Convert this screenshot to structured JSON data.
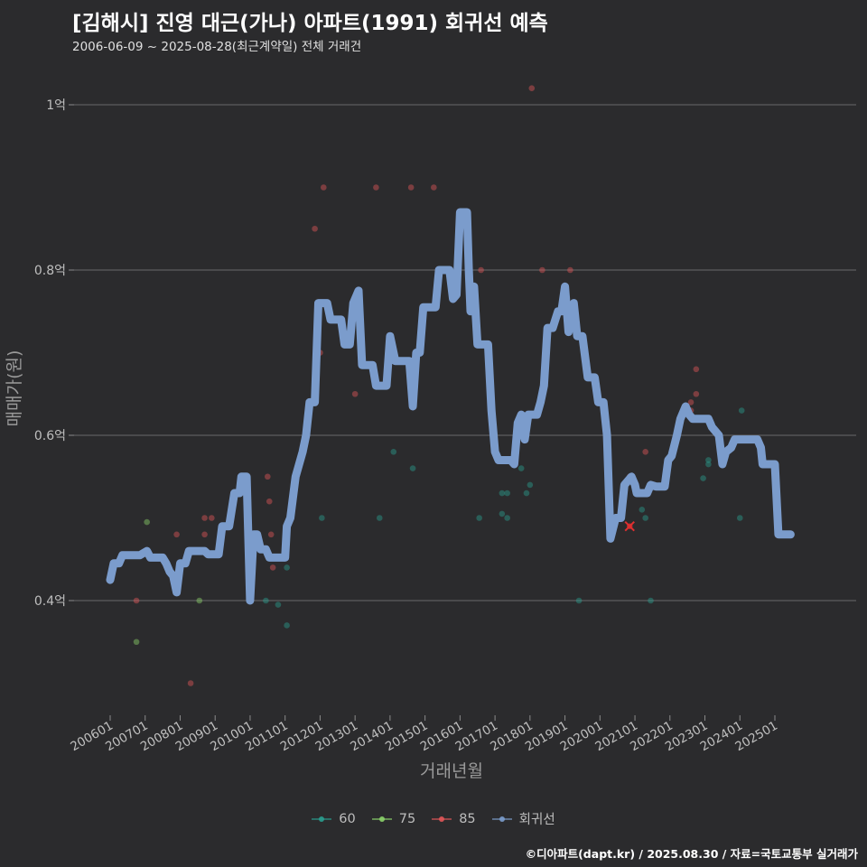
{
  "title": "[김해시] 진영 대근(가나) 아파트(1991) 회귀선 예측",
  "subtitle": "2006-06-09 ~ 2025-08-28(최근계약일) 전체 거래건",
  "caption": "©디아파트(dapt.kr) / 2025.08.30 / 자료=국토교통부 실거래가",
  "chart_data": {
    "type": "scatter",
    "xlabel": "거래년월",
    "ylabel": "매매가(원)",
    "ylim": [
      0.27,
      1.05
    ],
    "xlim": [
      2005.9,
      2025.95
    ],
    "y_ticks": [
      {
        "value": 0.4,
        "label": "0.4억"
      },
      {
        "value": 0.6,
        "label": "0.6억"
      },
      {
        "value": 0.8,
        "label": "0.8억"
      },
      {
        "value": 1.0,
        "label": "1억"
      }
    ],
    "x_ticks": [
      {
        "value": 2006.0,
        "label": "200601"
      },
      {
        "value": 2007.0,
        "label": "200701"
      },
      {
        "value": 2008.0,
        "label": "200801"
      },
      {
        "value": 2009.0,
        "label": "200901"
      },
      {
        "value": 2010.0,
        "label": "201001"
      },
      {
        "value": 2011.0,
        "label": "201101"
      },
      {
        "value": 2012.0,
        "label": "201201"
      },
      {
        "value": 2013.0,
        "label": "201301"
      },
      {
        "value": 2014.0,
        "label": "201401"
      },
      {
        "value": 2015.0,
        "label": "201501"
      },
      {
        "value": 2016.0,
        "label": "201601"
      },
      {
        "value": 2017.0,
        "label": "201701"
      },
      {
        "value": 2018.0,
        "label": "201801"
      },
      {
        "value": 2019.0,
        "label": "201901"
      },
      {
        "value": 2020.0,
        "label": "202001"
      },
      {
        "value": 2021.0,
        "label": "202101"
      },
      {
        "value": 2022.0,
        "label": "202201"
      },
      {
        "value": 2023.0,
        "label": "202301"
      },
      {
        "value": 2024.0,
        "label": "202401"
      },
      {
        "value": 2025.0,
        "label": "202501"
      }
    ],
    "legend": [
      {
        "name": "60",
        "color": "#2a9d8f",
        "kind": "point"
      },
      {
        "name": "75",
        "color": "#8bd26a",
        "kind": "point"
      },
      {
        "name": "85",
        "color": "#e15759",
        "kind": "point"
      },
      {
        "name": "회귀선",
        "color": "#7b9ccc",
        "kind": "line"
      }
    ],
    "series": [
      {
        "name": "60",
        "color": "#2a9d8f",
        "points": [
          [
            2010.45,
            0.4
          ],
          [
            2010.8,
            0.395
          ],
          [
            2011.05,
            0.44
          ],
          [
            2011.05,
            0.37
          ],
          [
            2012.05,
            0.5
          ],
          [
            2013.7,
            0.5
          ],
          [
            2014.1,
            0.58
          ],
          [
            2014.65,
            0.56
          ],
          [
            2016.55,
            0.5
          ],
          [
            2017.2,
            0.53
          ],
          [
            2017.2,
            0.505
          ],
          [
            2017.35,
            0.53
          ],
          [
            2017.35,
            0.5
          ],
          [
            2017.75,
            0.56
          ],
          [
            2017.9,
            0.53
          ],
          [
            2018.0,
            0.54
          ],
          [
            2019.4,
            0.4
          ],
          [
            2021.2,
            0.51
          ],
          [
            2021.3,
            0.5
          ],
          [
            2021.45,
            0.4
          ],
          [
            2022.95,
            0.548
          ],
          [
            2023.1,
            0.57
          ],
          [
            2023.1,
            0.565
          ],
          [
            2024.0,
            0.5
          ],
          [
            2024.05,
            0.63
          ]
        ]
      },
      {
        "name": "75",
        "color": "#8bd26a",
        "points": [
          [
            2006.75,
            0.35
          ],
          [
            2007.05,
            0.495
          ],
          [
            2008.55,
            0.4
          ]
        ]
      },
      {
        "name": "85",
        "color": "#e15759",
        "points": [
          [
            2006.75,
            0.4
          ],
          [
            2007.9,
            0.48
          ],
          [
            2008.3,
            0.3
          ],
          [
            2008.7,
            0.5
          ],
          [
            2008.7,
            0.48
          ],
          [
            2008.9,
            0.5
          ],
          [
            2010.5,
            0.55
          ],
          [
            2010.55,
            0.52
          ],
          [
            2010.6,
            0.48
          ],
          [
            2010.65,
            0.44
          ],
          [
            2011.85,
            0.85
          ],
          [
            2012.0,
            0.7
          ],
          [
            2012.1,
            0.9
          ],
          [
            2013.0,
            0.65
          ],
          [
            2013.6,
            0.9
          ],
          [
            2014.6,
            0.9
          ],
          [
            2015.25,
            0.9
          ],
          [
            2016.6,
            0.8
          ],
          [
            2018.05,
            1.02
          ],
          [
            2018.35,
            0.8
          ],
          [
            2019.15,
            0.8
          ],
          [
            2021.3,
            0.58
          ],
          [
            2022.6,
            0.64
          ],
          [
            2022.6,
            0.63
          ],
          [
            2022.75,
            0.68
          ],
          [
            2022.75,
            0.65
          ],
          [
            2020.85,
            0.55
          ]
        ]
      }
    ],
    "highlight_point": {
      "x": 2020.85,
      "y": 0.49,
      "color": "#e03030"
    },
    "regression": {
      "name": "회귀선",
      "color": "#7b9ccc",
      "points": [
        [
          2006.0,
          0.425
        ],
        [
          2006.1,
          0.445
        ],
        [
          2006.25,
          0.445
        ],
        [
          2006.35,
          0.455
        ],
        [
          2006.85,
          0.455
        ],
        [
          2007.05,
          0.46
        ],
        [
          2007.15,
          0.452
        ],
        [
          2007.5,
          0.452
        ],
        [
          2007.6,
          0.445
        ],
        [
          2007.7,
          0.435
        ],
        [
          2007.8,
          0.43
        ],
        [
          2007.9,
          0.41
        ],
        [
          2008.0,
          0.445
        ],
        [
          2008.15,
          0.445
        ],
        [
          2008.25,
          0.46
        ],
        [
          2008.7,
          0.46
        ],
        [
          2008.8,
          0.456
        ],
        [
          2009.1,
          0.456
        ],
        [
          2009.2,
          0.49
        ],
        [
          2009.4,
          0.49
        ],
        [
          2009.55,
          0.53
        ],
        [
          2009.7,
          0.53
        ],
        [
          2009.75,
          0.55
        ],
        [
          2009.9,
          0.55
        ],
        [
          2010.0,
          0.4
        ],
        [
          2010.1,
          0.48
        ],
        [
          2010.2,
          0.48
        ],
        [
          2010.3,
          0.462
        ],
        [
          2010.45,
          0.462
        ],
        [
          2010.55,
          0.452
        ],
        [
          2011.0,
          0.452
        ],
        [
          2011.05,
          0.49
        ],
        [
          2011.15,
          0.5
        ],
        [
          2011.3,
          0.55
        ],
        [
          2011.5,
          0.58
        ],
        [
          2011.6,
          0.6
        ],
        [
          2011.7,
          0.64
        ],
        [
          2011.85,
          0.64
        ],
        [
          2011.95,
          0.76
        ],
        [
          2012.2,
          0.76
        ],
        [
          2012.3,
          0.74
        ],
        [
          2012.6,
          0.74
        ],
        [
          2012.7,
          0.71
        ],
        [
          2012.85,
          0.71
        ],
        [
          2012.95,
          0.76
        ],
        [
          2013.1,
          0.775
        ],
        [
          2013.2,
          0.685
        ],
        [
          2013.5,
          0.685
        ],
        [
          2013.6,
          0.66
        ],
        [
          2013.9,
          0.66
        ],
        [
          2014.0,
          0.72
        ],
        [
          2014.15,
          0.69
        ],
        [
          2014.55,
          0.69
        ],
        [
          2014.65,
          0.635
        ],
        [
          2014.75,
          0.7
        ],
        [
          2014.85,
          0.7
        ],
        [
          2014.95,
          0.755
        ],
        [
          2015.3,
          0.755
        ],
        [
          2015.4,
          0.8
        ],
        [
          2015.7,
          0.8
        ],
        [
          2015.8,
          0.765
        ],
        [
          2015.9,
          0.77
        ],
        [
          2016.0,
          0.87
        ],
        [
          2016.2,
          0.87
        ],
        [
          2016.25,
          0.8
        ],
        [
          2016.3,
          0.75
        ],
        [
          2016.4,
          0.78
        ],
        [
          2016.5,
          0.71
        ],
        [
          2016.8,
          0.71
        ],
        [
          2016.9,
          0.63
        ],
        [
          2017.0,
          0.58
        ],
        [
          2017.1,
          0.57
        ],
        [
          2017.45,
          0.57
        ],
        [
          2017.55,
          0.565
        ],
        [
          2017.65,
          0.615
        ],
        [
          2017.75,
          0.625
        ],
        [
          2017.85,
          0.595
        ],
        [
          2017.95,
          0.625
        ],
        [
          2018.2,
          0.625
        ],
        [
          2018.3,
          0.64
        ],
        [
          2018.4,
          0.66
        ],
        [
          2018.5,
          0.73
        ],
        [
          2018.65,
          0.73
        ],
        [
          2018.8,
          0.75
        ],
        [
          2018.9,
          0.75
        ],
        [
          2019.0,
          0.78
        ],
        [
          2019.1,
          0.725
        ],
        [
          2019.25,
          0.76
        ],
        [
          2019.35,
          0.72
        ],
        [
          2019.5,
          0.72
        ],
        [
          2019.65,
          0.67
        ],
        [
          2019.85,
          0.67
        ],
        [
          2019.95,
          0.64
        ],
        [
          2020.1,
          0.64
        ],
        [
          2020.2,
          0.6
        ],
        [
          2020.3,
          0.475
        ],
        [
          2020.45,
          0.5
        ],
        [
          2020.6,
          0.5
        ],
        [
          2020.7,
          0.54
        ],
        [
          2020.9,
          0.55
        ],
        [
          2021.0,
          0.54
        ],
        [
          2021.05,
          0.53
        ],
        [
          2021.35,
          0.53
        ],
        [
          2021.45,
          0.54
        ],
        [
          2021.6,
          0.538
        ],
        [
          2021.85,
          0.538
        ],
        [
          2021.95,
          0.57
        ],
        [
          2022.05,
          0.575
        ],
        [
          2022.2,
          0.6
        ],
        [
          2022.3,
          0.62
        ],
        [
          2022.45,
          0.635
        ],
        [
          2022.55,
          0.625
        ],
        [
          2022.65,
          0.62
        ],
        [
          2022.8,
          0.62
        ],
        [
          2023.1,
          0.62
        ],
        [
          2023.2,
          0.61
        ],
        [
          2023.4,
          0.6
        ],
        [
          2023.5,
          0.565
        ],
        [
          2023.6,
          0.58
        ],
        [
          2023.75,
          0.585
        ],
        [
          2023.85,
          0.595
        ],
        [
          2024.2,
          0.595
        ],
        [
          2024.5,
          0.595
        ],
        [
          2024.6,
          0.585
        ],
        [
          2024.65,
          0.565
        ],
        [
          2024.85,
          0.565
        ],
        [
          2025.0,
          0.565
        ],
        [
          2025.1,
          0.48
        ],
        [
          2025.45,
          0.48
        ]
      ]
    }
  }
}
